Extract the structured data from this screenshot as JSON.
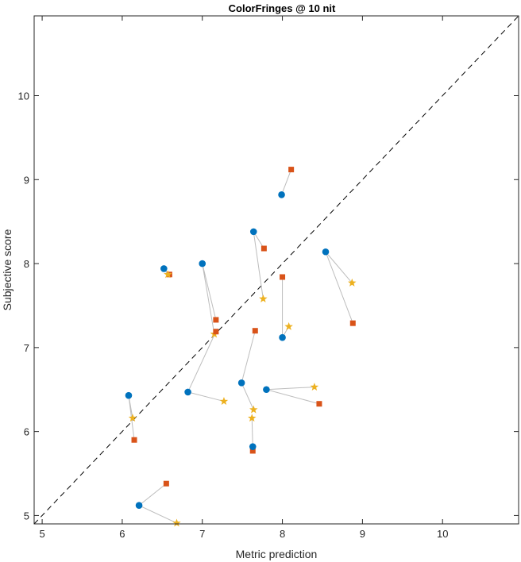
{
  "chart_data": {
    "type": "scatter",
    "title": "ColorFringes @ 10 nit",
    "xlabel": "Metric prediction",
    "ylabel": "Subjective score",
    "xlim": [
      4.9,
      10.95
    ],
    "ylim": [
      4.9,
      10.95
    ],
    "xticks": [
      "5",
      "6",
      "7",
      "8",
      "9",
      "10"
    ],
    "yticks": [
      "5",
      "6",
      "7",
      "8",
      "9",
      "10"
    ],
    "grid": false,
    "reference_line": "y = x (dashed)",
    "colors": {
      "circle": "#0072BD",
      "square": "#D95319",
      "star": "#EDB120",
      "connector": "#BDBDBD",
      "reference": "#000000"
    },
    "groups": [
      {
        "circle": [
          7.99,
          8.82
        ],
        "square": [
          8.11,
          9.12
        ],
        "star": null
      },
      {
        "circle": [
          7.64,
          8.38
        ],
        "square": [
          7.77,
          8.18
        ],
        "star": [
          7.76,
          7.58
        ]
      },
      {
        "circle": [
          8.0,
          7.12
        ],
        "square": [
          8.0,
          7.84
        ],
        "star": [
          8.08,
          7.25
        ]
      },
      {
        "circle": [
          8.54,
          8.14
        ],
        "square": [
          8.88,
          7.29
        ],
        "star": [
          8.87,
          7.77
        ]
      },
      {
        "circle": [
          6.52,
          7.94
        ],
        "square": [
          6.59,
          7.87
        ],
        "star": [
          6.57,
          7.87
        ]
      },
      {
        "circle": [
          7.0,
          8.0
        ],
        "square": [
          7.17,
          7.33
        ],
        "star": [
          7.15,
          7.16
        ]
      },
      {
        "circle": [
          6.82,
          6.47
        ],
        "square": [
          7.17,
          7.19
        ],
        "star": [
          7.27,
          6.36
        ]
      },
      {
        "circle": [
          7.49,
          6.58
        ],
        "square": [
          7.66,
          7.2
        ],
        "star": [
          7.64,
          6.26
        ]
      },
      {
        "circle": [
          7.8,
          6.5
        ],
        "square": [
          8.46,
          6.33
        ],
        "star": [
          8.4,
          6.53
        ]
      },
      {
        "circle": [
          7.63,
          5.82
        ],
        "square": [
          7.63,
          5.77
        ],
        "star": [
          7.62,
          6.16
        ]
      },
      {
        "circle": [
          6.08,
          6.43
        ],
        "square": [
          6.15,
          5.9
        ],
        "star": [
          6.13,
          6.16
        ]
      },
      {
        "circle": [
          6.21,
          5.12
        ],
        "square": [
          6.55,
          5.38
        ],
        "star": [
          6.68,
          4.91
        ]
      }
    ]
  }
}
